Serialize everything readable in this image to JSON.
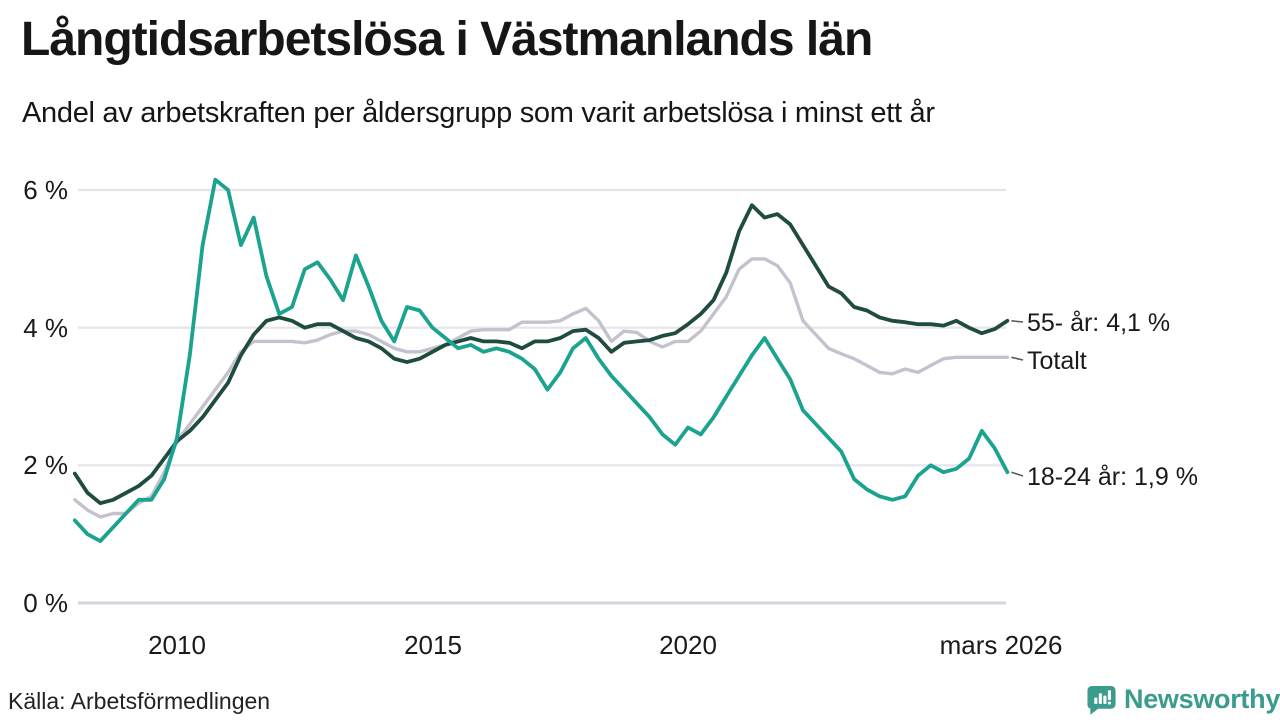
{
  "header": {
    "title": "Långtidsarbetslösa i Västmanlands län",
    "subtitle": "Andel av arbetskraften per åldersgrupp som varit arbetslösa i minst ett år"
  },
  "footer": {
    "source": "Källa: Arbetsförmedlingen",
    "brand": "Newsworthy",
    "brand_icon": "bar-chart-speech-bubble-icon"
  },
  "colors": {
    "teal_line": "#1ba390",
    "dark_green_line": "#1f4c3f",
    "gray_line": "#c5c2cf",
    "grid": "#e5e4ec",
    "baseline": "#d5d4de",
    "leader": "#5a5a5a",
    "text": "#1a1a1a",
    "brand_teal": "#3b9b8d"
  },
  "chart_data": {
    "type": "line",
    "title": "Långtidsarbetslösa i Västmanlands län",
    "subtitle": "Andel av arbetskraften per åldersgrupp som varit arbetslösa i minst ett år",
    "x_unit": "år (månadsdata)",
    "ylim": [
      0,
      6.3
    ],
    "grid": "horizontal",
    "legend_position": "right-end-labels",
    "y_ticks": [
      {
        "value": 0,
        "label": "0 %"
      },
      {
        "value": 2,
        "label": "2 %"
      },
      {
        "value": 4,
        "label": "4 %"
      },
      {
        "value": 6,
        "label": "6 %"
      }
    ],
    "x_ticks": [
      {
        "value": 2010,
        "label": "2010"
      },
      {
        "value": 2015,
        "label": "2015"
      },
      {
        "value": 2020,
        "label": "2020"
      },
      {
        "value": 2026.17,
        "label": "mars 2026"
      }
    ],
    "x": [
      2008.0,
      2008.25,
      2008.5,
      2008.75,
      2009.0,
      2009.25,
      2009.5,
      2009.75,
      2010.0,
      2010.25,
      2010.5,
      2010.75,
      2011.0,
      2011.25,
      2011.5,
      2011.75,
      2012.0,
      2012.25,
      2012.5,
      2012.75,
      2013.0,
      2013.25,
      2013.5,
      2013.75,
      2014.0,
      2014.25,
      2014.5,
      2014.75,
      2015.0,
      2015.25,
      2015.5,
      2015.75,
      2016.0,
      2016.25,
      2016.5,
      2016.75,
      2017.0,
      2017.25,
      2017.5,
      2017.75,
      2018.0,
      2018.25,
      2018.5,
      2018.75,
      2019.0,
      2019.25,
      2019.5,
      2019.75,
      2020.0,
      2020.25,
      2020.5,
      2020.75,
      2021.0,
      2021.25,
      2021.5,
      2021.75,
      2022.0,
      2022.25,
      2022.5,
      2022.75,
      2023.0,
      2023.25,
      2023.5,
      2023.75,
      2024.0,
      2024.25,
      2024.5,
      2024.75,
      2025.0,
      2025.25,
      2025.5,
      2025.75,
      2026.0,
      2026.25
    ],
    "series": [
      {
        "name": "55- år",
        "end_label": "55- år: 4,1 %",
        "latest_value": "4,1 %",
        "color": "#1f4c3f",
        "values": [
          1.88,
          1.6,
          1.45,
          1.5,
          1.6,
          1.7,
          1.85,
          2.1,
          2.35,
          2.5,
          2.7,
          2.95,
          3.2,
          3.6,
          3.9,
          4.1,
          4.15,
          4.1,
          4.0,
          4.05,
          4.05,
          3.95,
          3.85,
          3.8,
          3.7,
          3.55,
          3.5,
          3.55,
          3.65,
          3.75,
          3.8,
          3.85,
          3.8,
          3.8,
          3.78,
          3.7,
          3.8,
          3.8,
          3.85,
          3.95,
          3.97,
          3.85,
          3.65,
          3.78,
          3.8,
          3.82,
          3.88,
          3.92,
          4.05,
          4.2,
          4.4,
          4.8,
          5.4,
          5.78,
          5.6,
          5.65,
          5.5,
          5.2,
          4.9,
          4.6,
          4.5,
          4.3,
          4.25,
          4.15,
          4.1,
          4.08,
          4.05,
          4.05,
          4.03,
          4.1,
          4.0,
          3.92,
          3.98,
          4.1
        ]
      },
      {
        "name": "Totalt",
        "end_label": "Totalt",
        "latest_value": "3,6 %",
        "color": "#c5c2cf",
        "values": [
          1.5,
          1.35,
          1.25,
          1.3,
          1.3,
          1.45,
          1.55,
          1.9,
          2.35,
          2.6,
          2.85,
          3.1,
          3.35,
          3.65,
          3.8,
          3.8,
          3.8,
          3.8,
          3.78,
          3.82,
          3.9,
          3.95,
          3.95,
          3.9,
          3.8,
          3.7,
          3.65,
          3.65,
          3.7,
          3.75,
          3.85,
          3.95,
          3.97,
          3.97,
          3.97,
          4.08,
          4.08,
          4.08,
          4.1,
          4.2,
          4.28,
          4.1,
          3.8,
          3.95,
          3.93,
          3.8,
          3.72,
          3.8,
          3.8,
          3.95,
          4.2,
          4.45,
          4.85,
          5.0,
          5.0,
          4.9,
          4.65,
          4.1,
          3.9,
          3.7,
          3.62,
          3.55,
          3.45,
          3.35,
          3.33,
          3.4,
          3.35,
          3.45,
          3.55,
          3.57,
          3.57,
          3.57,
          3.57,
          3.57
        ]
      },
      {
        "name": "18-24 år",
        "end_label": "18-24 år: 1,9 %",
        "latest_value": "1,9 %",
        "color": "#1ba390",
        "values": [
          1.2,
          1.0,
          0.9,
          1.1,
          1.3,
          1.5,
          1.5,
          1.8,
          2.4,
          3.6,
          5.2,
          6.15,
          6.0,
          5.2,
          5.6,
          4.75,
          4.2,
          4.3,
          4.85,
          4.95,
          4.7,
          4.4,
          5.05,
          4.6,
          4.1,
          3.8,
          4.3,
          4.25,
          4.0,
          3.85,
          3.7,
          3.75,
          3.65,
          3.7,
          3.65,
          3.55,
          3.4,
          3.1,
          3.35,
          3.7,
          3.85,
          3.55,
          3.3,
          3.1,
          2.9,
          2.7,
          2.45,
          2.3,
          2.55,
          2.45,
          2.7,
          3.0,
          3.3,
          3.6,
          3.85,
          3.55,
          3.25,
          2.8,
          2.6,
          2.4,
          2.2,
          1.8,
          1.65,
          1.55,
          1.5,
          1.55,
          1.85,
          2.0,
          1.9,
          1.95,
          2.1,
          2.5,
          2.25,
          1.9
        ]
      }
    ]
  }
}
